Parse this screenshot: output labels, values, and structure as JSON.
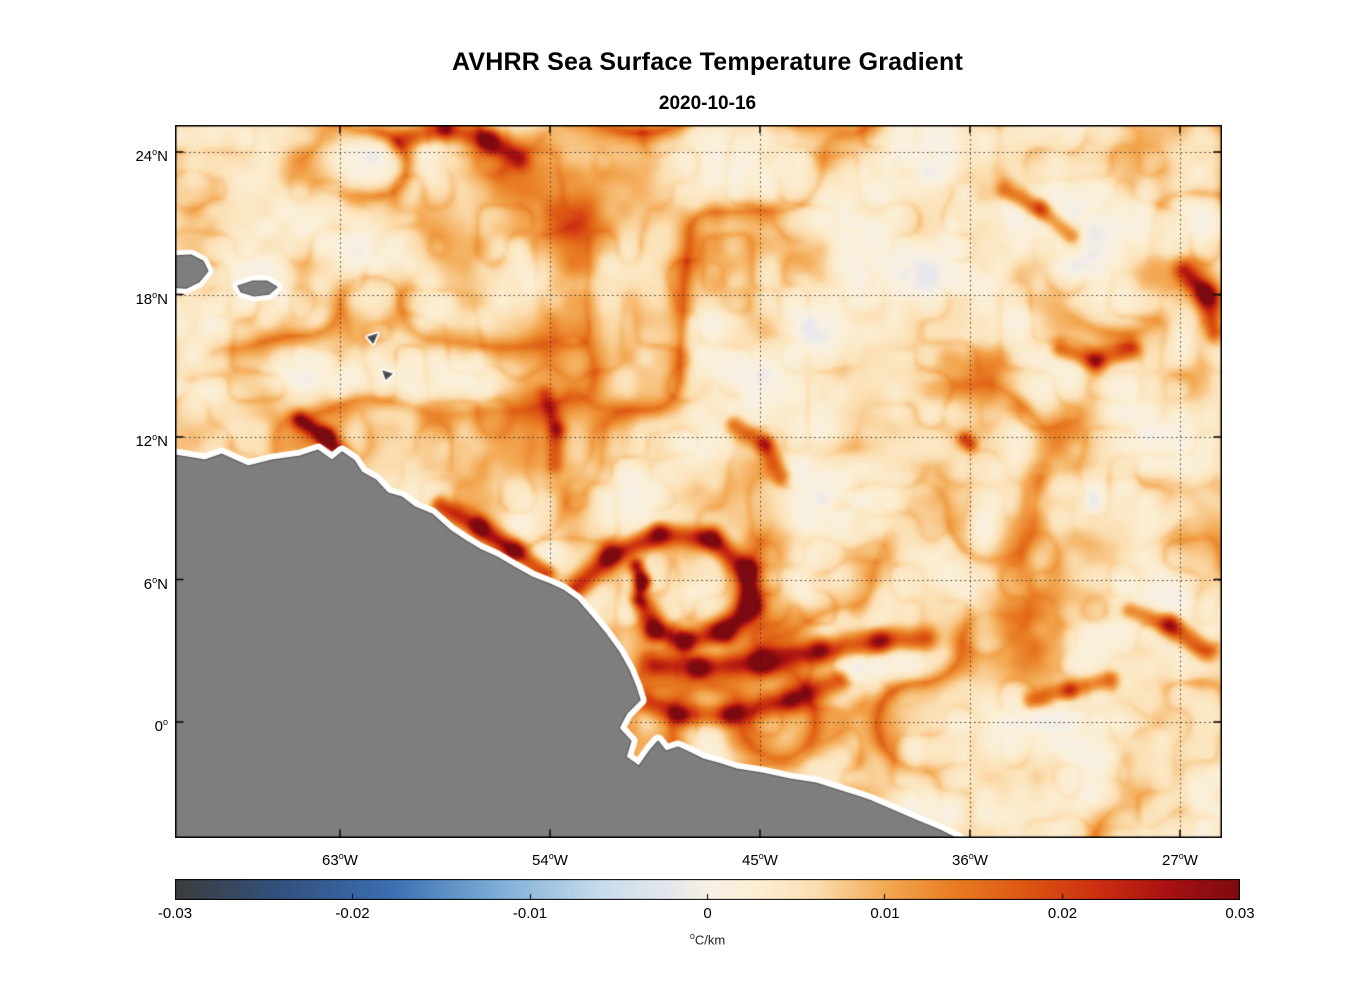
{
  "chart": {
    "title": "AVHRR Sea Surface Temperature Gradient",
    "subtitle": "2020-10-16"
  },
  "chart_data": {
    "type": "heatmap",
    "title": "AVHRR Sea Surface Temperature Gradient",
    "subtitle": "2020-10-16",
    "xlabel": "",
    "ylabel": "",
    "grid": "dotted",
    "legend": "colorbar-south",
    "lon_range": [
      -70.07,
      -25.2
    ],
    "lat_range": [
      -4.88,
      25.14
    ],
    "value_range": [
      -0.03,
      0.03
    ],
    "xticks": [
      {
        "value": -63,
        "num": "63",
        "sup": "o",
        "hem": "W"
      },
      {
        "value": -54,
        "num": "54",
        "sup": "o",
        "hem": "W"
      },
      {
        "value": -45,
        "num": "45",
        "sup": "o",
        "hem": "W"
      },
      {
        "value": -36,
        "num": "36",
        "sup": "o",
        "hem": "W"
      },
      {
        "value": -27,
        "num": "27",
        "sup": "o",
        "hem": "W"
      }
    ],
    "yticks": [
      {
        "value": 24,
        "num": "24",
        "sup": "o",
        "hem": "N"
      },
      {
        "value": 18,
        "num": "18",
        "sup": "o",
        "hem": "N"
      },
      {
        "value": 12,
        "num": "12",
        "sup": "o",
        "hem": "N"
      },
      {
        "value": 6,
        "num": "6",
        "sup": "o",
        "hem": "N"
      },
      {
        "value": 0,
        "num": "0",
        "sup": "o",
        "hem": ""
      }
    ],
    "colorbar": {
      "position": "bottom",
      "label_sup": "o",
      "label_text": "C/km",
      "ticks": [
        {
          "value": -0.03,
          "label": "-0.03"
        },
        {
          "value": -0.02,
          "label": "-0.02"
        },
        {
          "value": -0.01,
          "label": "-0.01"
        },
        {
          "value": 0,
          "label": "0"
        },
        {
          "value": 0.01,
          "label": "0.01"
        },
        {
          "value": 0.02,
          "label": "0.02"
        },
        {
          "value": 0.03,
          "label": "0.03"
        }
      ]
    },
    "colormap": [
      [
        -0.03,
        "#3c3c3c"
      ],
      [
        -0.024,
        "#32517f"
      ],
      [
        -0.018,
        "#3a6db0"
      ],
      [
        -0.012,
        "#7aacd6"
      ],
      [
        -0.006,
        "#c8dcec"
      ],
      [
        -0.002,
        "#e7e6ec"
      ],
      [
        0.0,
        "#f7f0e4"
      ],
      [
        0.003,
        "#fbeed3"
      ],
      [
        0.006,
        "#fbdfb3"
      ],
      [
        0.01,
        "#f3a953"
      ],
      [
        0.014,
        "#e87b23"
      ],
      [
        0.018,
        "#dc5613"
      ],
      [
        0.022,
        "#cc2f10"
      ],
      [
        0.026,
        "#a81112"
      ],
      [
        0.03,
        "#7c0a10"
      ]
    ],
    "land_color": "#7e7e7e",
    "land_edge_color": "#5c5c5c",
    "coast_halo_color": "#ffffff",
    "land_polygons": [
      {
        "halo": 13,
        "points": [
          [
            -71.0,
            11.4
          ],
          [
            -68.78,
            11.03
          ],
          [
            -68.06,
            11.28
          ],
          [
            -66.94,
            10.78
          ],
          [
            -65.91,
            11.03
          ],
          [
            -64.71,
            11.2
          ],
          [
            -63.94,
            11.45
          ],
          [
            -63.34,
            11.03
          ],
          [
            -62.91,
            11.37
          ],
          [
            -62.4,
            11.03
          ],
          [
            -62.06,
            10.52
          ],
          [
            -61.46,
            10.19
          ],
          [
            -60.94,
            9.64
          ],
          [
            -60.34,
            9.47
          ],
          [
            -59.78,
            9.05
          ],
          [
            -59.06,
            8.76
          ],
          [
            -58.28,
            8.08
          ],
          [
            -57.64,
            7.66
          ],
          [
            -57.0,
            7.28
          ],
          [
            -56.27,
            6.95
          ],
          [
            -55.54,
            6.53
          ],
          [
            -54.77,
            6.11
          ],
          [
            -54.0,
            5.81
          ],
          [
            -53.44,
            5.56
          ],
          [
            -52.84,
            5.14
          ],
          [
            -52.2,
            4.42
          ],
          [
            -51.6,
            3.71
          ],
          [
            -51.04,
            2.95
          ],
          [
            -50.61,
            2.19
          ],
          [
            -50.31,
            1.47
          ],
          [
            -50.14,
            0.93
          ],
          [
            -50.7,
            0.38
          ],
          [
            -51.04,
            -0.25
          ],
          [
            -50.53,
            -0.8
          ],
          [
            -50.74,
            -1.47
          ],
          [
            -50.19,
            -1.85
          ],
          [
            -49.71,
            -1.18
          ],
          [
            -49.37,
            -0.8
          ],
          [
            -49.03,
            -1.22
          ],
          [
            -48.51,
            -1.05
          ],
          [
            -47.96,
            -1.3
          ],
          [
            -47.44,
            -1.56
          ],
          [
            -46.8,
            -1.73
          ],
          [
            -45.99,
            -1.98
          ],
          [
            -44.91,
            -2.15
          ],
          [
            -43.71,
            -2.4
          ],
          [
            -42.6,
            -2.57
          ],
          [
            -41.48,
            -2.91
          ],
          [
            -40.8,
            -3.12
          ],
          [
            -40.2,
            -3.33
          ],
          [
            -39.3,
            -3.71
          ],
          [
            -38.31,
            -4.13
          ],
          [
            -37.29,
            -4.55
          ],
          [
            -36.51,
            -4.93
          ],
          [
            -36.2,
            -5.6
          ],
          [
            -71.0,
            -5.6
          ]
        ]
      },
      {
        "halo": 11,
        "points": [
          [
            -70.6,
            19.6
          ],
          [
            -69.38,
            19.66
          ],
          [
            -68.87,
            19.41
          ],
          [
            -68.66,
            18.99
          ],
          [
            -69.04,
            18.53
          ],
          [
            -69.6,
            18.27
          ],
          [
            -70.6,
            18.35
          ]
        ]
      },
      {
        "halo": 11,
        "points": [
          [
            -67.37,
            18.36
          ],
          [
            -66.73,
            18.57
          ],
          [
            -66.13,
            18.57
          ],
          [
            -65.7,
            18.32
          ],
          [
            -66.04,
            18.02
          ],
          [
            -66.68,
            17.94
          ],
          [
            -67.24,
            18.11
          ]
        ]
      },
      {
        "halo": 5,
        "fill": "#444444",
        "points": [
          [
            -61.8,
            16.21
          ],
          [
            -61.41,
            16.34
          ],
          [
            -61.58,
            15.96
          ]
        ]
      },
      {
        "halo": 5,
        "fill": "#444444",
        "points": [
          [
            -61.16,
            14.78
          ],
          [
            -60.77,
            14.66
          ],
          [
            -61.03,
            14.44
          ]
        ]
      }
    ],
    "fronts": [
      {
        "strength": 0.016,
        "width": 0.45,
        "points": [
          [
            -52.9,
            5.6
          ],
          [
            -51.4,
            7.0
          ],
          [
            -49.3,
            7.9
          ],
          [
            -47.1,
            7.7
          ],
          [
            -45.6,
            6.4
          ],
          [
            -45.4,
            4.9
          ],
          [
            -46.5,
            3.8
          ],
          [
            -48.2,
            3.4
          ],
          [
            -49.5,
            3.9
          ],
          [
            -49.9,
            4.8
          ]
        ]
      },
      {
        "strength": 0.02,
        "width": 0.3,
        "points": [
          [
            -50.3,
            6.6
          ],
          [
            -50.05,
            5.9
          ],
          [
            -50.2,
            5.2
          ]
        ]
      },
      {
        "strength": 0.014,
        "width": 0.5,
        "points": [
          [
            -49.5,
            2.4
          ],
          [
            -47.6,
            2.3
          ],
          [
            -45.0,
            2.5
          ],
          [
            -42.4,
            3.0
          ],
          [
            -39.9,
            3.4
          ],
          [
            -37.9,
            3.5
          ]
        ]
      },
      {
        "strength": 0.012,
        "width": 0.45,
        "points": [
          [
            -50.1,
            0.9
          ],
          [
            -48.4,
            0.3
          ],
          [
            -46.3,
            0.3
          ],
          [
            -43.7,
            0.9
          ],
          [
            -41.6,
            1.8
          ]
        ]
      },
      {
        "strength": 0.019,
        "width": 0.35,
        "points": [
          [
            -64.7,
            12.7
          ],
          [
            -63.6,
            12.0
          ],
          [
            -62.8,
            11.1
          ]
        ]
      },
      {
        "strength": 0.016,
        "width": 0.4,
        "points": [
          [
            -58.7,
            9.1
          ],
          [
            -57.0,
            8.2
          ],
          [
            -55.5,
            7.2
          ],
          [
            -54.2,
            6.3
          ]
        ]
      },
      {
        "strength": 0.013,
        "width": 0.45,
        "points": [
          [
            -60.4,
            24.5
          ],
          [
            -58.5,
            25.0
          ],
          [
            -56.6,
            24.5
          ],
          [
            -55.3,
            23.7
          ]
        ]
      },
      {
        "strength": 0.015,
        "width": 0.45,
        "points": [
          [
            -26.8,
            19.0
          ],
          [
            -25.9,
            18.0
          ],
          [
            -25.5,
            16.5
          ]
        ]
      },
      {
        "strength": 0.012,
        "width": 0.4,
        "points": [
          [
            -32.1,
            15.7
          ],
          [
            -30.6,
            15.2
          ],
          [
            -29.1,
            15.7
          ]
        ]
      },
      {
        "strength": 0.011,
        "width": 0.4,
        "points": [
          [
            -34.5,
            22.4
          ],
          [
            -33.0,
            21.6
          ],
          [
            -31.7,
            20.5
          ]
        ]
      },
      {
        "strength": 0.014,
        "width": 0.3,
        "points": [
          [
            -36.2,
            11.9
          ],
          [
            -36.0,
            11.7
          ]
        ]
      },
      {
        "strength": 0.013,
        "width": 0.45,
        "points": [
          [
            -29.1,
            4.7
          ],
          [
            -27.4,
            4.1
          ],
          [
            -25.9,
            3.0
          ]
        ]
      },
      {
        "strength": 0.011,
        "width": 0.4,
        "points": [
          [
            -33.4,
            0.9
          ],
          [
            -31.7,
            1.35
          ],
          [
            -30.0,
            1.8
          ]
        ]
      },
      {
        "strength": 0.011,
        "width": 0.4,
        "points": [
          [
            -46.1,
            12.5
          ],
          [
            -44.8,
            11.7
          ],
          [
            -44.1,
            10.4
          ]
        ]
      },
      {
        "strength": 0.009,
        "width": 0.35,
        "points": [
          [
            -54.2,
            13.8
          ],
          [
            -53.7,
            12.3
          ],
          [
            -53.8,
            10.8
          ]
        ]
      }
    ],
    "noise": {
      "seed": 11,
      "base": 0.0028,
      "blotch_scale": 0.42,
      "blotch_amp": 0.0046,
      "detail_scale": 1.3,
      "detail_amp": 0.0018,
      "mask_scale": 0.2,
      "filament_scale": 0.34,
      "filament_amp": 0.014,
      "fine_scale": 0.85,
      "fine_amp": 0.005
    }
  }
}
